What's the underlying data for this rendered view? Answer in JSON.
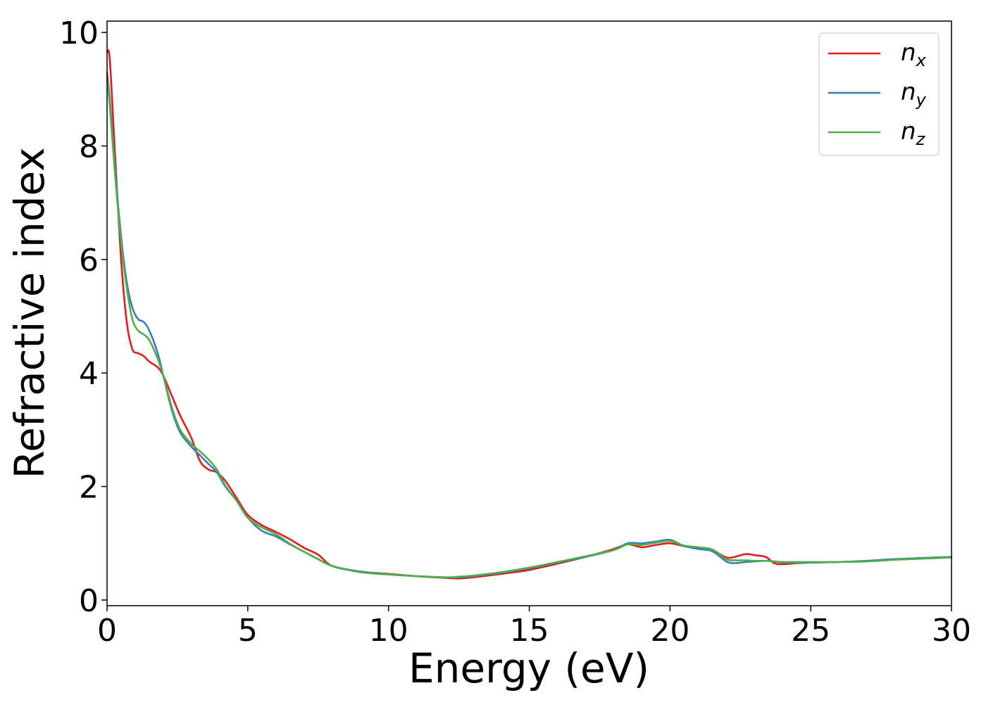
{
  "chart_data": {
    "type": "line",
    "title": "",
    "xlabel": "Energy (eV)",
    "ylabel": "Refractive index",
    "xlim": [
      0,
      30
    ],
    "ylim": [
      -0.1,
      10.2
    ],
    "xticks": [
      0,
      5,
      10,
      15,
      20,
      25,
      30
    ],
    "yticks": [
      0,
      2,
      4,
      6,
      8,
      10
    ],
    "grid": false,
    "legend_position": "top-right",
    "series": [
      {
        "name": "n",
        "subscript": "x",
        "color": "#e41a1c",
        "x": [
          0,
          0.1,
          0.3,
          0.5,
          0.7,
          0.9,
          1.1,
          1.3,
          1.5,
          1.8,
          2.0,
          2.3,
          2.6,
          3.0,
          3.3,
          3.6,
          3.9,
          4.2,
          4.6,
          5.0,
          5.5,
          6.0,
          6.5,
          7.0,
          7.5,
          8.0,
          9.0,
          10.0,
          11.0,
          12.0,
          12.5,
          13.0,
          14.0,
          15.0,
          16.0,
          17.0,
          18.0,
          18.5,
          19.0,
          19.5,
          20.0,
          20.5,
          21.0,
          21.5,
          22.0,
          22.3,
          22.7,
          23.0,
          23.4,
          23.7,
          24.0,
          24.5,
          25.0,
          26.0,
          27.0,
          28.0,
          29.0,
          30.0
        ],
        "y": [
          9.65,
          9.5,
          7.7,
          6.0,
          4.9,
          4.42,
          4.35,
          4.3,
          4.2,
          4.1,
          3.95,
          3.6,
          3.25,
          2.85,
          2.45,
          2.3,
          2.25,
          2.1,
          1.8,
          1.5,
          1.32,
          1.2,
          1.07,
          0.92,
          0.8,
          0.6,
          0.5,
          0.46,
          0.42,
          0.39,
          0.38,
          0.4,
          0.46,
          0.53,
          0.64,
          0.76,
          0.9,
          0.98,
          0.93,
          0.97,
          1.0,
          0.95,
          0.92,
          0.88,
          0.75,
          0.76,
          0.81,
          0.79,
          0.76,
          0.65,
          0.63,
          0.65,
          0.66,
          0.67,
          0.69,
          0.72,
          0.74,
          0.76
        ]
      },
      {
        "name": "n",
        "subscript": "y",
        "color": "#377eb8",
        "x": [
          0,
          0.1,
          0.3,
          0.5,
          0.7,
          0.9,
          1.1,
          1.3,
          1.5,
          1.8,
          2.0,
          2.3,
          2.6,
          3.0,
          3.3,
          3.6,
          3.9,
          4.2,
          4.6,
          5.0,
          5.5,
          6.0,
          6.5,
          7.0,
          7.5,
          8.0,
          9.0,
          10.0,
          11.0,
          12.0,
          12.5,
          13.0,
          14.0,
          15.0,
          16.0,
          17.0,
          18.0,
          18.5,
          19.0,
          19.5,
          20.0,
          20.5,
          21.0,
          21.5,
          22.0,
          22.3,
          22.7,
          23.0,
          23.4,
          23.7,
          24.0,
          24.5,
          25.0,
          26.0,
          27.0,
          28.0,
          29.0,
          30.0
        ],
        "y": [
          9.3,
          8.8,
          7.5,
          6.4,
          5.6,
          5.15,
          4.95,
          4.9,
          4.75,
          4.35,
          3.95,
          3.35,
          2.95,
          2.7,
          2.55,
          2.4,
          2.25,
          2.0,
          1.75,
          1.45,
          1.22,
          1.12,
          0.98,
          0.85,
          0.72,
          0.6,
          0.5,
          0.45,
          0.42,
          0.4,
          0.4,
          0.42,
          0.48,
          0.56,
          0.66,
          0.76,
          0.88,
          1.0,
          1.0,
          1.03,
          1.06,
          0.95,
          0.9,
          0.86,
          0.68,
          0.65,
          0.67,
          0.68,
          0.69,
          0.68,
          0.66,
          0.66,
          0.66,
          0.67,
          0.69,
          0.72,
          0.74,
          0.76
        ]
      },
      {
        "name": "n",
        "subscript": "z",
        "color": "#4daf4a",
        "x": [
          0,
          0.1,
          0.3,
          0.5,
          0.7,
          0.9,
          1.1,
          1.3,
          1.5,
          1.8,
          2.0,
          2.3,
          2.6,
          3.0,
          3.3,
          3.6,
          3.9,
          4.2,
          4.6,
          5.0,
          5.5,
          6.0,
          6.5,
          7.0,
          7.5,
          8.0,
          9.0,
          10.0,
          11.0,
          12.0,
          12.5,
          13.0,
          14.0,
          15.0,
          16.0,
          17.0,
          18.0,
          18.5,
          19.0,
          19.5,
          20.0,
          20.5,
          21.0,
          21.5,
          22.0,
          22.3,
          22.7,
          23.0,
          23.4,
          23.7,
          24.0,
          24.5,
          25.0,
          26.0,
          27.0,
          28.0,
          29.0,
          30.0
        ],
        "y": [
          9.2,
          8.7,
          7.4,
          6.3,
          5.5,
          4.95,
          4.75,
          4.68,
          4.58,
          4.25,
          3.95,
          3.4,
          3.0,
          2.75,
          2.62,
          2.48,
          2.3,
          2.02,
          1.75,
          1.45,
          1.28,
          1.16,
          0.99,
          0.85,
          0.72,
          0.6,
          0.49,
          0.45,
          0.42,
          0.4,
          0.41,
          0.43,
          0.49,
          0.57,
          0.67,
          0.77,
          0.88,
          0.98,
          0.97,
          1.01,
          1.04,
          0.96,
          0.93,
          0.89,
          0.72,
          0.7,
          0.7,
          0.69,
          0.69,
          0.68,
          0.67,
          0.67,
          0.67,
          0.67,
          0.68,
          0.71,
          0.73,
          0.75
        ]
      }
    ]
  }
}
